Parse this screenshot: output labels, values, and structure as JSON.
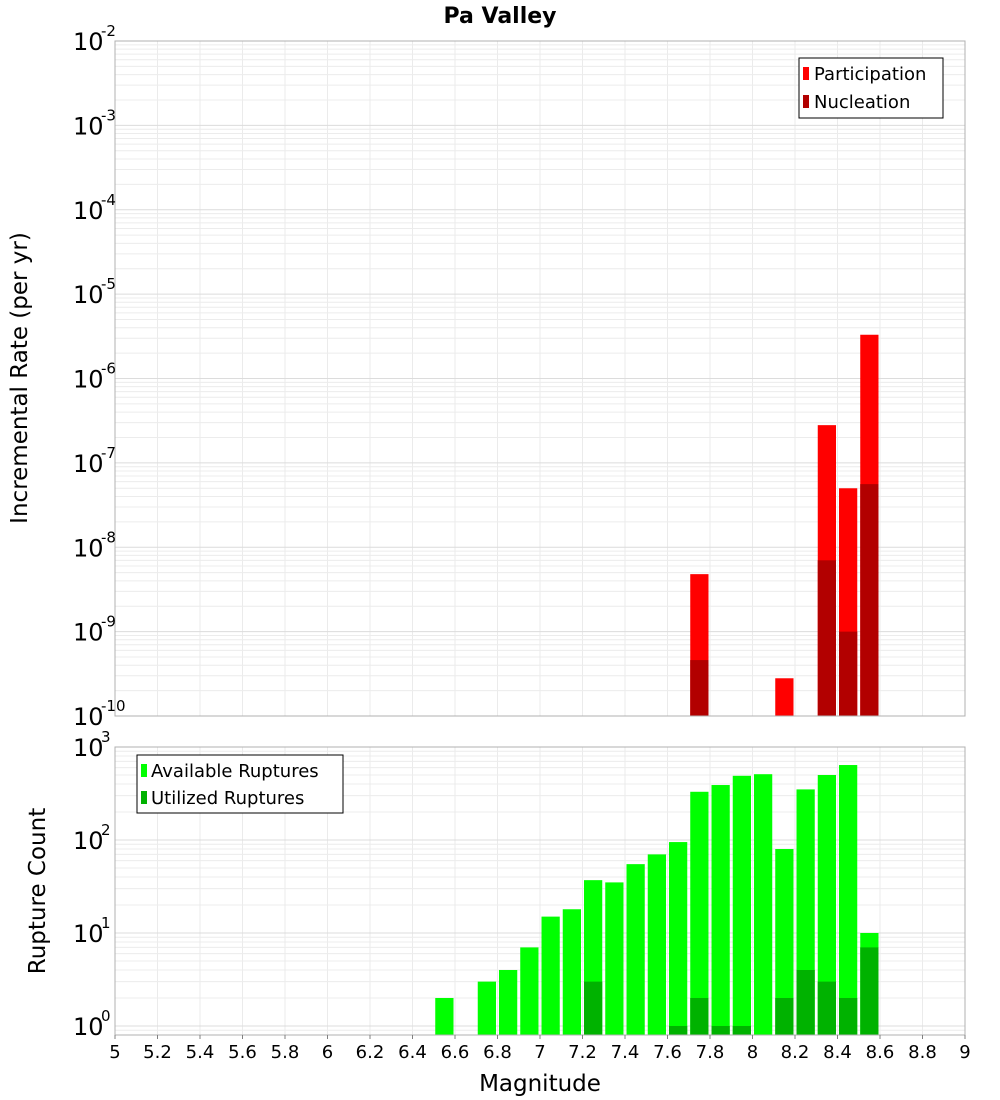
{
  "chart_data": [
    {
      "type": "bar",
      "title": "Pa Valley",
      "ylabel": "Incremental Rate (per yr)",
      "yscale": "log",
      "ylim": [
        1e-10,
        0.01
      ],
      "xlim": [
        5,
        9
      ],
      "grid": true,
      "legend_position": "top-right",
      "bin_width": 0.1,
      "x": [
        7.75,
        8.15,
        8.35,
        8.45,
        8.55
      ],
      "series": [
        {
          "name": "Participation",
          "color": "#ff0000",
          "values": [
            4.8e-09,
            2.8e-10,
            2.8e-07,
            5e-08,
            3.3e-06
          ]
        },
        {
          "name": "Nucleation",
          "color": "#b20000",
          "values": [
            4.6e-10,
            null,
            7e-09,
            1e-09,
            5.6e-08
          ]
        }
      ]
    },
    {
      "type": "bar",
      "xlabel": "Magnitude",
      "ylabel": "Rupture Count",
      "yscale": "log",
      "ylim": [
        0.8,
        1000
      ],
      "xlim": [
        5,
        9
      ],
      "grid": true,
      "legend_position": "top-left",
      "bin_width": 0.1,
      "x": [
        6.55,
        6.75,
        6.85,
        6.95,
        7.05,
        7.15,
        7.25,
        7.35,
        7.45,
        7.55,
        7.65,
        7.75,
        7.85,
        7.95,
        8.05,
        8.15,
        8.25,
        8.35,
        8.45,
        8.55
      ],
      "series": [
        {
          "name": "Available Ruptures",
          "color": "#00ff00",
          "values": [
            2,
            3,
            4,
            7,
            15,
            18,
            37,
            35,
            55,
            70,
            95,
            330,
            390,
            490,
            510,
            80,
            350,
            500,
            640,
            10
          ]
        },
        {
          "name": "Utilized Ruptures",
          "color": "#00b200",
          "values": [
            null,
            null,
            null,
            null,
            null,
            null,
            3,
            null,
            null,
            null,
            1,
            2,
            1,
            1,
            null,
            2,
            4,
            3,
            2,
            7
          ]
        }
      ],
      "xticks": [
        "5",
        "5.2",
        "5.4",
        "5.6",
        "5.8",
        "6",
        "6.2",
        "6.4",
        "6.6",
        "6.8",
        "7",
        "7.2",
        "7.4",
        "7.6",
        "7.8",
        "8",
        "8.2",
        "8.4",
        "8.6",
        "8.8",
        "9"
      ]
    }
  ]
}
